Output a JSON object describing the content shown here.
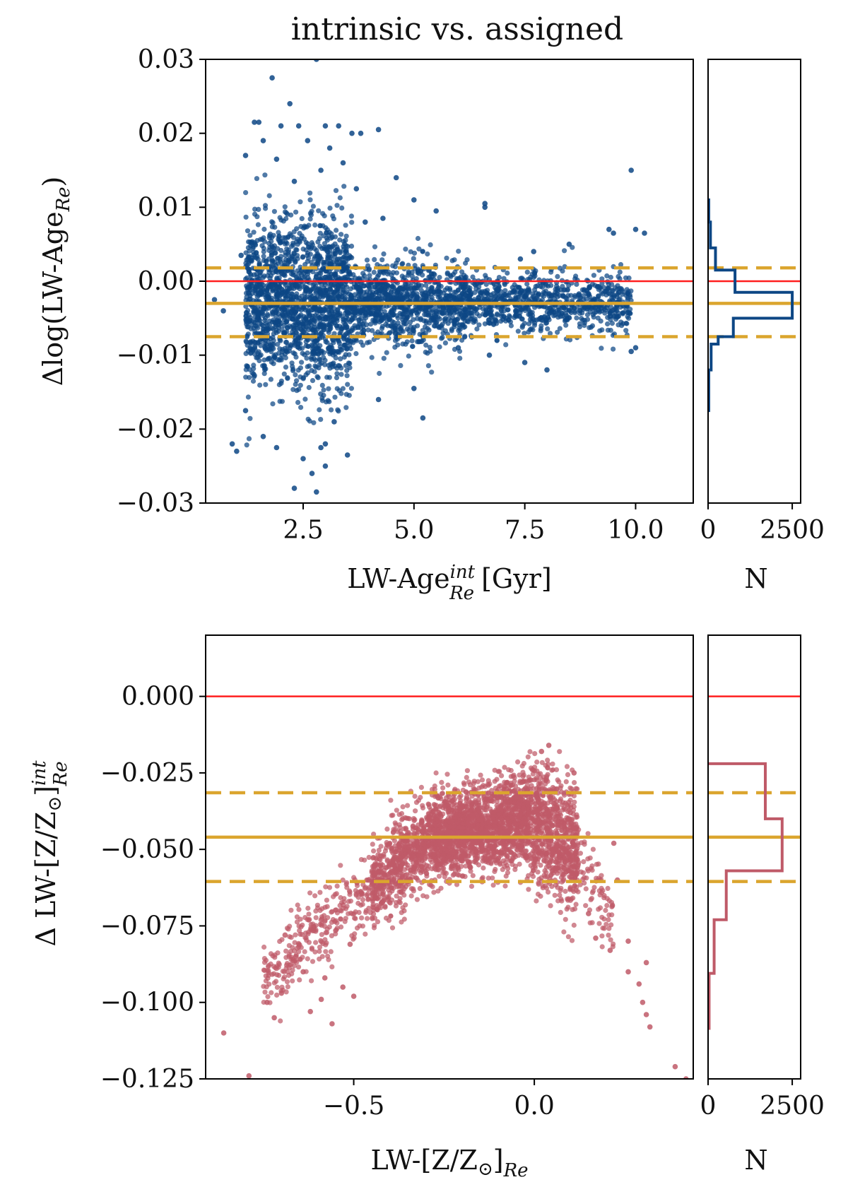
{
  "title": "intrinsic vs. assigned",
  "colors": {
    "age_points": "#0d4785",
    "met_points": "#bf5a68",
    "zero_line": "#ff1f1f",
    "median_line": "#dba52e",
    "hist_age": "#0d4785",
    "hist_met": "#bf5a68"
  },
  "chart_data": [
    {
      "type": "scatter",
      "name": "age-panel",
      "xlabel_main": "LW-Age",
      "xlabel_sup": "int",
      "xlabel_sub": "Re",
      "xlabel_unit": "[Gyr]",
      "ylabel_main": "Δlog(LW-Age",
      "ylabel_sub": "Re",
      "ylabel_close": ")",
      "xlim": [
        0.3,
        11.3
      ],
      "ylim": [
        -0.03,
        0.03
      ],
      "xticks": [
        2.5,
        5.0,
        7.5,
        10.0
      ],
      "xtick_labels": [
        "2.5",
        "5.0",
        "7.5",
        "10.0"
      ],
      "yticks": [
        -0.03,
        -0.02,
        -0.01,
        0.0,
        0.01,
        0.02,
        0.03
      ],
      "ytick_labels": [
        "−0.03",
        "−0.02",
        "−0.01",
        "0.00",
        "0.01",
        "0.02",
        "0.03"
      ],
      "zero_line": 0.0,
      "median": -0.003,
      "p_low": -0.0075,
      "p_high": 0.0018,
      "points": [
        [
          2.8,
          0.03
        ],
        [
          1.8,
          0.0275
        ],
        [
          2.2,
          0.024
        ],
        [
          1.4,
          0.0215
        ],
        [
          1.5,
          0.0215
        ],
        [
          2.0,
          0.021
        ],
        [
          2.4,
          0.021
        ],
        [
          3.0,
          0.021
        ],
        [
          3.3,
          0.021
        ],
        [
          3.6,
          0.02
        ],
        [
          3.8,
          0.02
        ],
        [
          4.2,
          0.0205
        ],
        [
          1.2,
          0.017
        ],
        [
          1.6,
          0.019
        ],
        [
          2.6,
          0.019
        ],
        [
          3.1,
          0.018
        ],
        [
          1.9,
          0.0165
        ],
        [
          2.3,
          0.0135
        ],
        [
          2.9,
          0.015
        ],
        [
          3.4,
          0.016
        ],
        [
          9.9,
          0.015
        ],
        [
          4.6,
          0.014
        ],
        [
          3.7,
          0.0125
        ],
        [
          5.0,
          0.011
        ],
        [
          6.6,
          0.0105
        ],
        [
          6.6,
          0.01
        ],
        [
          5.5,
          0.0095
        ],
        [
          4.3,
          0.0085
        ],
        [
          3.9,
          0.008
        ],
        [
          9.4,
          0.007
        ],
        [
          9.5,
          0.0065
        ],
        [
          10.0,
          0.007
        ],
        [
          10.2,
          0.0065
        ],
        [
          8.5,
          0.005
        ],
        [
          7.7,
          0.004
        ],
        [
          7.4,
          0.003
        ],
        [
          1.1,
          0.0035
        ],
        [
          0.5,
          -0.0025
        ],
        [
          0.7,
          -0.004
        ],
        [
          10.0,
          -0.009
        ],
        [
          9.9,
          -0.0095
        ],
        [
          8.0,
          -0.012
        ],
        [
          6.7,
          -0.01
        ],
        [
          6.0,
          -0.009
        ],
        [
          7.5,
          -0.011
        ],
        [
          5.2,
          -0.0185
        ],
        [
          5.0,
          -0.0145
        ],
        [
          4.2,
          -0.016
        ],
        [
          3.5,
          -0.0235
        ],
        [
          3.0,
          -0.022
        ],
        [
          2.7,
          -0.026
        ],
        [
          2.5,
          -0.024
        ],
        [
          2.3,
          -0.028
        ],
        [
          2.8,
          -0.0285
        ],
        [
          1.9,
          -0.0225
        ],
        [
          1.6,
          -0.021
        ],
        [
          1.2,
          -0.0175
        ],
        [
          0.9,
          -0.022
        ],
        [
          1.0,
          -0.023
        ],
        [
          3.2,
          -0.019
        ],
        [
          2.9,
          -0.0225
        ],
        [
          3.0,
          -0.025
        ]
      ],
      "cloud": [
        {
          "x": [
            1.2,
            3.6
          ],
          "mu": -0.003,
          "sd": 0.0055,
          "n": 1700
        },
        {
          "x": [
            3.6,
            6.2
          ],
          "mu": -0.003,
          "sd": 0.0028,
          "n": 1000
        },
        {
          "x": [
            6.2,
            9.9
          ],
          "mu": -0.003,
          "sd": 0.002,
          "n": 800
        }
      ]
    },
    {
      "type": "histogram",
      "name": "age-hist",
      "orientation": "horizontal",
      "xlabel": "N",
      "xlim": [
        0,
        2750
      ],
      "xticks": [
        0,
        2500
      ],
      "xtick_labels": [
        "0",
        "2500"
      ],
      "bins": [
        {
          "lo": -0.0175,
          "hi": -0.012,
          "count": 20
        },
        {
          "lo": -0.012,
          "hi": -0.0085,
          "count": 90
        },
        {
          "lo": -0.0085,
          "hi": -0.0075,
          "count": 300
        },
        {
          "lo": -0.0075,
          "hi": -0.005,
          "count": 750
        },
        {
          "lo": -0.005,
          "hi": -0.0015,
          "count": 2500
        },
        {
          "lo": -0.0015,
          "hi": 0.0015,
          "count": 800
        },
        {
          "lo": 0.0015,
          "hi": 0.0045,
          "count": 220
        },
        {
          "lo": 0.0045,
          "hi": 0.008,
          "count": 70
        },
        {
          "lo": 0.008,
          "hi": 0.011,
          "count": 20
        }
      ]
    },
    {
      "type": "scatter",
      "name": "metallicity-panel",
      "xlabel_main": "LW-[Z/Z",
      "xlabel_sun": "⊙",
      "xlabel_close": "]",
      "xlabel_sub": "Re",
      "ylabel_main": "Δ LW-[Z/Z",
      "ylabel_sun": "⊙",
      "ylabel_close": "]",
      "ylabel_sup": "int",
      "ylabel_sub": "Re",
      "xlim": [
        -0.91,
        0.44
      ],
      "ylim": [
        -0.125,
        0.02
      ],
      "xticks": [
        -0.5,
        0.0
      ],
      "xtick_labels": [
        "−0.5",
        "0.0"
      ],
      "yticks": [
        -0.125,
        -0.1,
        -0.075,
        -0.05,
        -0.025,
        0.0
      ],
      "ytick_labels": [
        "−0.125",
        "−0.100",
        "−0.075",
        "−0.050",
        "−0.025",
        "0.000"
      ],
      "zero_line": 0.0,
      "median": -0.046,
      "p_low": -0.0605,
      "p_high": -0.0315,
      "points": [
        [
          -0.86,
          -0.11
        ],
        [
          -0.79,
          -0.124
        ],
        [
          -0.74,
          -0.1
        ],
        [
          -0.72,
          -0.105
        ],
        [
          -0.7,
          -0.097
        ],
        [
          -0.69,
          -0.078
        ],
        [
          -0.66,
          -0.085
        ],
        [
          -0.64,
          -0.09
        ],
        [
          -0.62,
          -0.103
        ],
        [
          -0.59,
          -0.099
        ],
        [
          -0.56,
          -0.107
        ],
        [
          -0.58,
          -0.092
        ],
        [
          -0.53,
          -0.095
        ],
        [
          -0.5,
          -0.098
        ],
        [
          -0.51,
          -0.081
        ],
        [
          0.04,
          -0.016
        ],
        [
          0.02,
          -0.018
        ],
        [
          0.11,
          -0.025
        ],
        [
          0.1,
          -0.038
        ],
        [
          0.22,
          -0.048
        ],
        [
          0.23,
          -0.06
        ],
        [
          0.15,
          -0.071
        ],
        [
          0.17,
          -0.079
        ],
        [
          0.21,
          -0.083
        ],
        [
          0.26,
          -0.08
        ],
        [
          0.31,
          -0.087
        ],
        [
          0.29,
          -0.094
        ],
        [
          0.3,
          -0.1
        ],
        [
          0.31,
          -0.104
        ],
        [
          0.32,
          -0.108
        ],
        [
          0.39,
          -0.121
        ],
        [
          0.42,
          -0.125
        ],
        [
          0.26,
          -0.09
        ]
      ],
      "cloud": [
        {
          "x": [
            -0.75,
            -0.45
          ],
          "ymid": [
            -0.092,
            -0.062
          ],
          "sd": 0.006,
          "n": 300
        },
        {
          "x": [
            -0.45,
            -0.28
          ],
          "ymid": [
            -0.062,
            -0.046
          ],
          "sd": 0.007,
          "n": 700
        },
        {
          "x": [
            -0.28,
            -0.02
          ],
          "ymid": [
            -0.046,
            -0.04
          ],
          "sd": 0.007,
          "n": 1700
        },
        {
          "x": [
            -0.02,
            0.12
          ],
          "ymid": [
            -0.04,
            -0.05
          ],
          "sd": 0.01,
          "n": 800
        },
        {
          "x": [
            0.12,
            0.22
          ],
          "ymid": [
            -0.055,
            -0.07
          ],
          "sd": 0.007,
          "n": 80
        }
      ]
    },
    {
      "type": "histogram",
      "name": "metallicity-hist",
      "orientation": "horizontal",
      "xlabel": "N",
      "xlim": [
        0,
        2750
      ],
      "xticks": [
        0,
        2500
      ],
      "xtick_labels": [
        "0",
        "2500"
      ],
      "bins": [
        {
          "lo": -0.1085,
          "hi": -0.0905,
          "count": 30
        },
        {
          "lo": -0.0905,
          "hi": -0.073,
          "count": 180
        },
        {
          "lo": -0.073,
          "hi": -0.057,
          "count": 540
        },
        {
          "lo": -0.057,
          "hi": -0.04,
          "count": 2200
        },
        {
          "lo": -0.04,
          "hi": -0.022,
          "count": 1700
        }
      ]
    }
  ]
}
